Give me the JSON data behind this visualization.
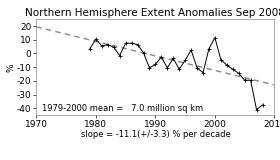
{
  "title": "Northern Hemisphere Extent Anomalies Sep 2008",
  "xlabel_bottom": "slope = -11.1(+/-3.3) % per decade",
  "ylabel": "%",
  "annotation": "1979-2000 mean =   7.0 million sq km",
  "xlim": [
    1970,
    2010
  ],
  "ylim": [
    -45,
    25
  ],
  "yticks": [
    -40,
    -30,
    -20,
    -10,
    0,
    10,
    20
  ],
  "xticks": [
    1970,
    1980,
    1990,
    2000,
    2010
  ],
  "years": [
    1979,
    1980,
    1981,
    1982,
    1983,
    1984,
    1985,
    1986,
    1987,
    1988,
    1989,
    1990,
    1991,
    1992,
    1993,
    1994,
    1995,
    1996,
    1997,
    1998,
    1999,
    2000,
    2001,
    2002,
    2003,
    2004,
    2005,
    2006,
    2007,
    2008
  ],
  "anomalies": [
    3.5,
    10.5,
    5.5,
    6.5,
    4.5,
    -1.5,
    7.5,
    7.5,
    6.5,
    0.5,
    -10.5,
    -8.0,
    -2.5,
    -10.5,
    -3.5,
    -11.5,
    -5.0,
    2.5,
    -10.5,
    -14.0,
    3.5,
    11.5,
    -4.5,
    -8.5,
    -11.5,
    -14.5,
    -19.5,
    -19.5,
    -41.0,
    -37.5
  ],
  "line_color": "#000000",
  "trend_color": "#888888",
  "bg_color": "#ffffff",
  "title_fontsize": 7.5,
  "label_fontsize": 6.5,
  "tick_fontsize": 6.5,
  "annot_fontsize": 6.0
}
